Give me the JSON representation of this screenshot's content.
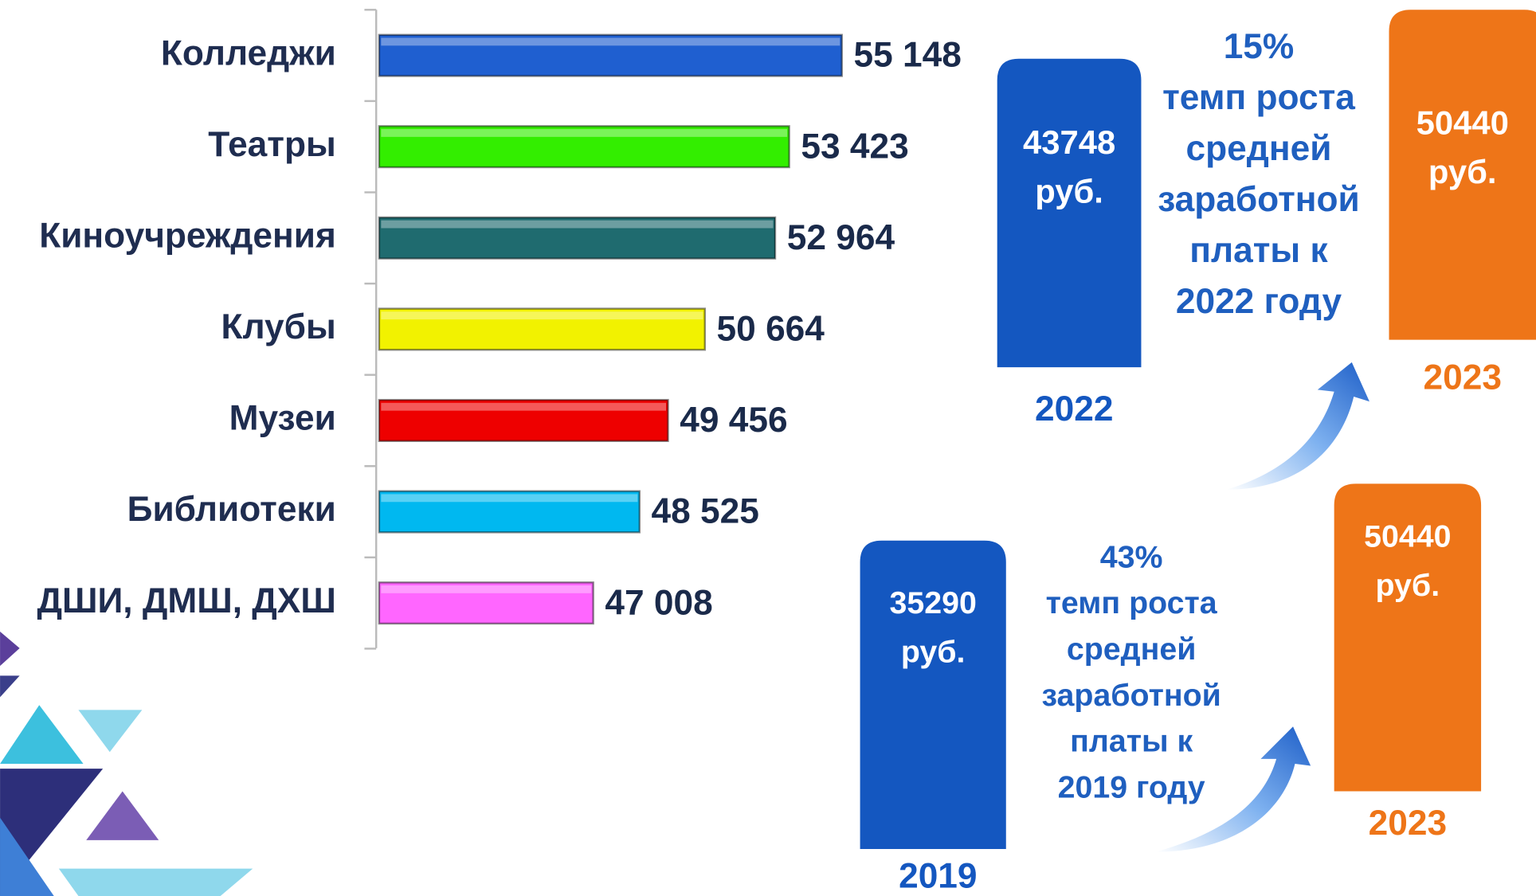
{
  "chart_data": {
    "type": "hbar",
    "categories": [
      "Колледжи",
      "Театры",
      "Киноучреждения",
      "Клубы",
      "Музеи",
      "Библиотеки",
      "ДШИ, ДМШ, ДХШ"
    ],
    "values": [
      55148,
      53423,
      52964,
      50664,
      49456,
      48525,
      47008
    ],
    "value_labels": [
      "55 148",
      "53 423",
      "52 964",
      "50 664",
      "49 456",
      "48 525",
      "47 008"
    ],
    "colors": [
      "#1f5fd0",
      "#33ee00",
      "#1f6b6f",
      "#f2f200",
      "#ee0000",
      "#00b8f0",
      "#ff66ff"
    ],
    "xlim": [
      40000,
      56000
    ]
  },
  "comparisons": [
    {
      "growth": "15%",
      "caption": [
        "темп роста",
        "средней",
        "заработной",
        "платы к",
        "2022 году"
      ],
      "from": {
        "amount": 43748,
        "unit": "руб.",
        "year": "2022",
        "color": "#1457c0"
      },
      "to": {
        "amount": 50440,
        "unit": "руб.",
        "year": "2023",
        "color": "#ee7518"
      }
    },
    {
      "growth": "43%",
      "caption": [
        "темп роста",
        "средней",
        "заработной",
        "платы к",
        "2019 году"
      ],
      "from": {
        "amount": 35290,
        "unit": "руб.",
        "year": "2019",
        "color": "#1457c0"
      },
      "to": {
        "amount": 50440,
        "unit": "руб.",
        "year": "2023",
        "color": "#ee7518"
      }
    }
  ]
}
